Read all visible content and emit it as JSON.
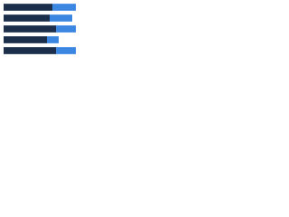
{
  "chart_data": {
    "type": "stacked-barh",
    "categories": [
      null,
      null,
      null,
      null,
      null
    ],
    "series": [
      {
        "color": "#1b2f4b",
        "values": [
          54,
          51,
          58,
          48,
          58
        ]
      },
      {
        "color": "#3a86e0",
        "values": [
          26,
          25,
          22,
          13,
          22
        ]
      }
    ],
    "xlim": [
      0,
      90
    ]
  }
}
